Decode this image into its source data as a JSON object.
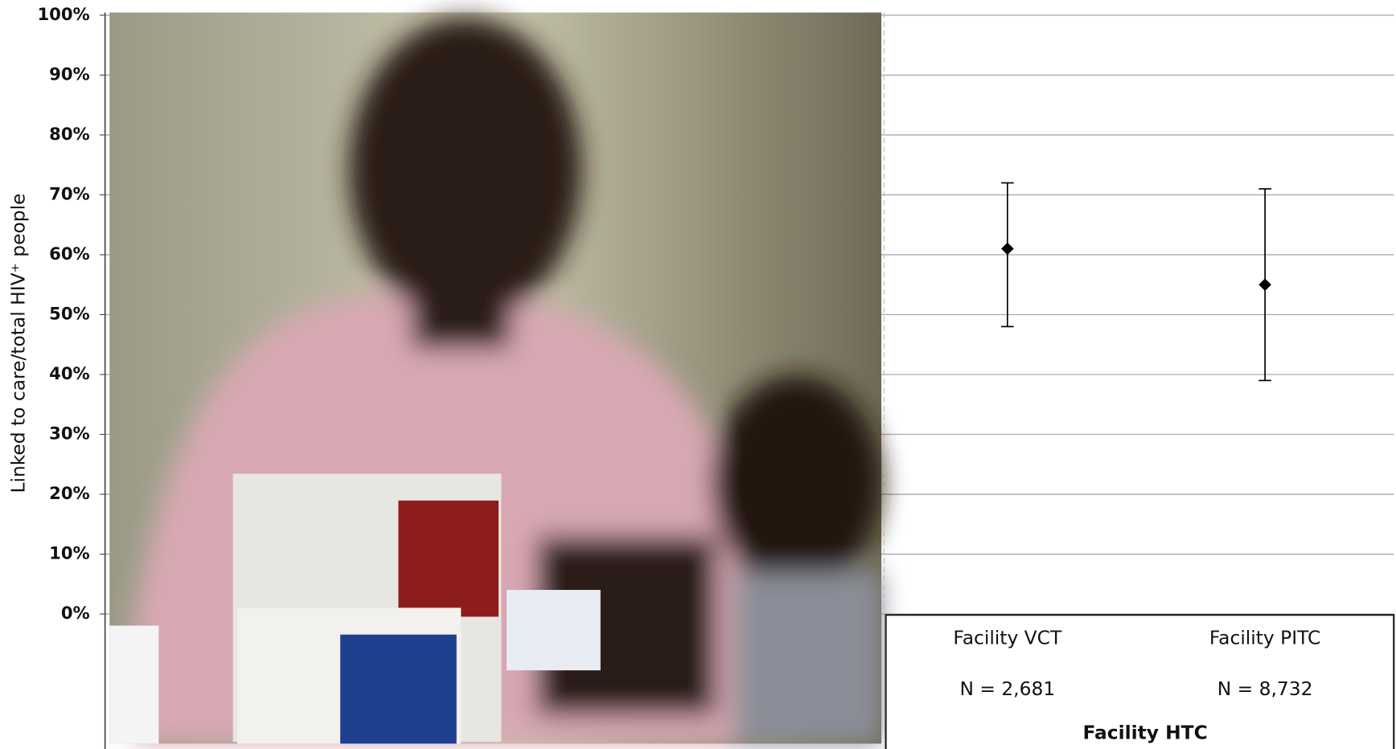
{
  "chart_data": {
    "type": "errorbar",
    "y_axis_label": "Linked to care/total HIV⁺ people",
    "x_axis_label": "Facility HTC",
    "categories": [
      "Facility  VCT",
      "Facility PITC"
    ],
    "sample_sizes": [
      "N = 2,681",
      "N = 8,732"
    ],
    "values": [
      61,
      55
    ],
    "lower": [
      48,
      39
    ],
    "upper": [
      72,
      71
    ],
    "color": "#000000",
    "ylim": [
      0,
      100
    ],
    "yticks": [
      {
        "value": 0,
        "label": "0%"
      },
      {
        "value": 10,
        "label": "10%"
      },
      {
        "value": 20,
        "label": "20%"
      },
      {
        "value": 30,
        "label": "30%"
      },
      {
        "value": 40,
        "label": "40%"
      },
      {
        "value": 50,
        "label": "50%"
      },
      {
        "value": 60,
        "label": "60%"
      },
      {
        "value": 70,
        "label": "70%"
      },
      {
        "value": 80,
        "label": "80%"
      },
      {
        "value": 90,
        "label": "90%"
      },
      {
        "value": 100,
        "label": "100%"
      }
    ],
    "grid": true
  }
}
